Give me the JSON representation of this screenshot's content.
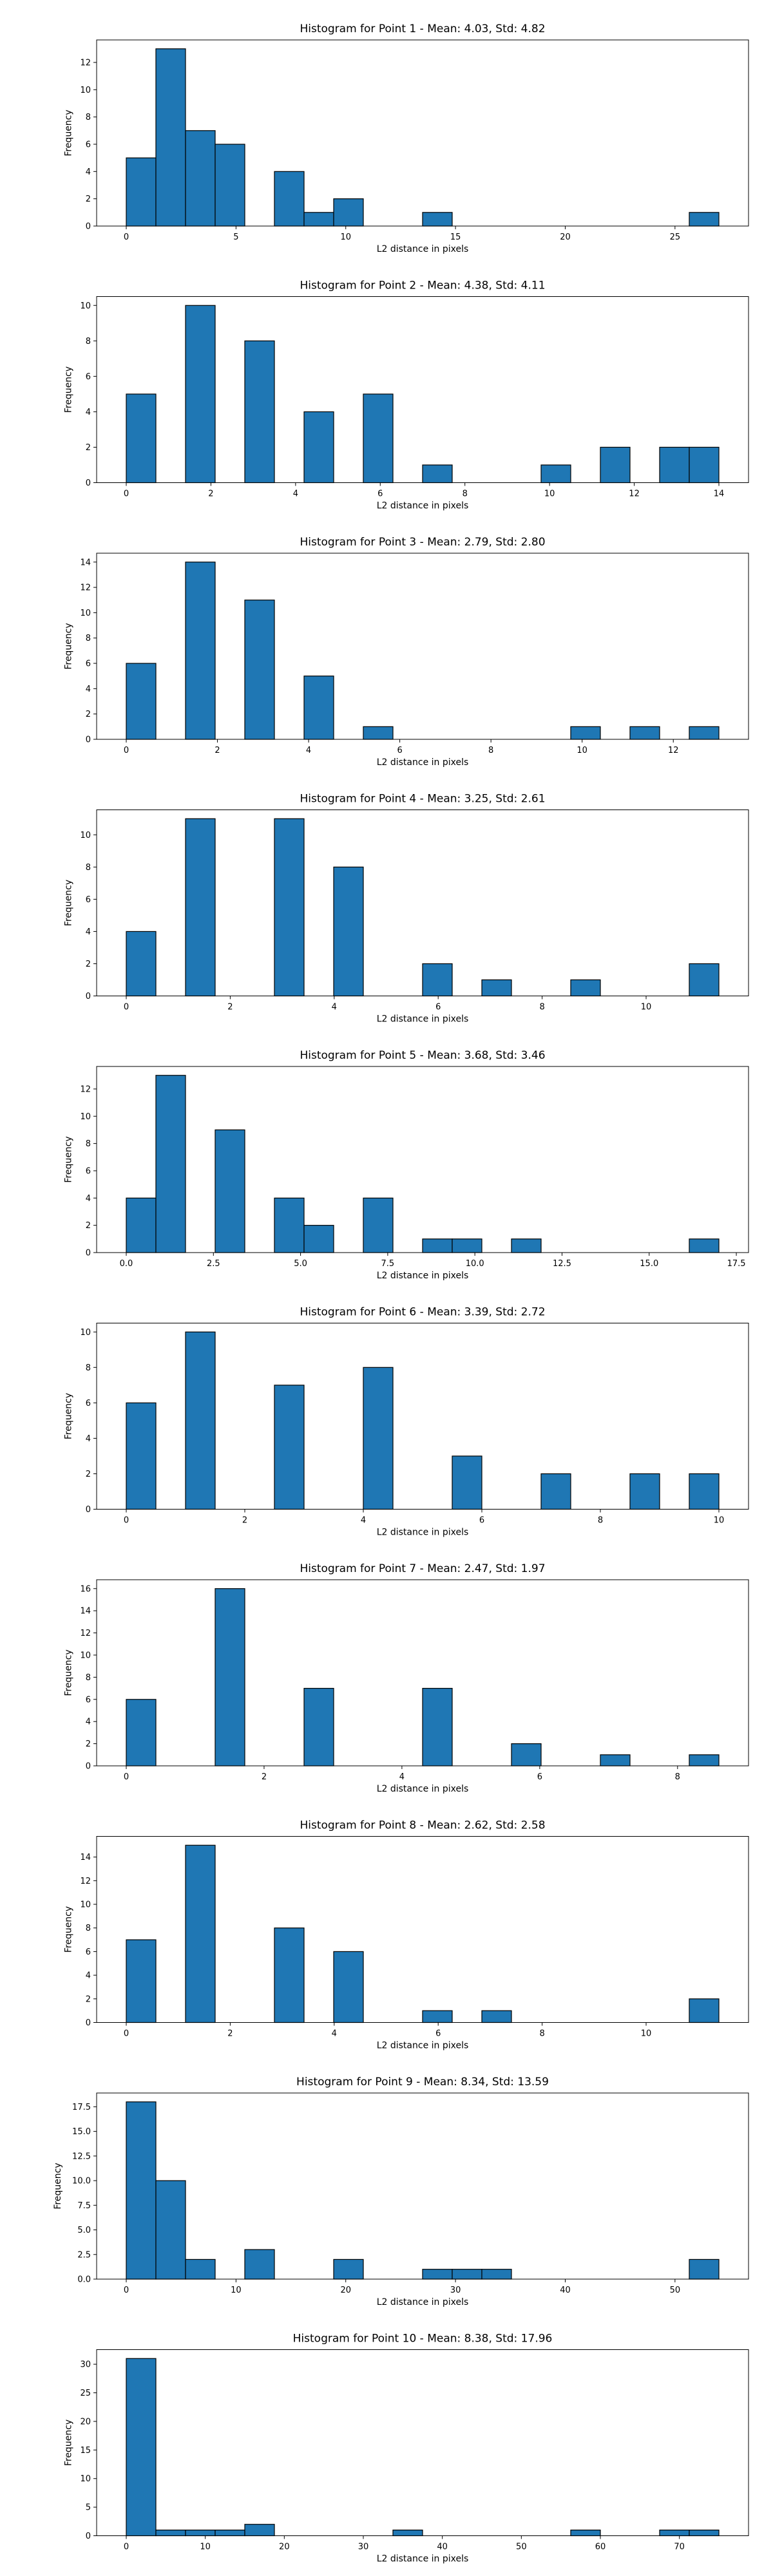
{
  "chart_data": [
    {
      "type": "bar",
      "title": "Histogram for Point 1 - Mean: 4.03, Std: 4.82",
      "xlabel": "L2 distance in pixels",
      "ylabel": "Frequency",
      "xlim": [
        -1.35,
        28.35
      ],
      "ylim": [
        0,
        13.65
      ],
      "xticks": [
        0,
        5,
        10,
        15,
        20,
        25
      ],
      "xtick_labels": [
        "0",
        "5",
        "10",
        "15",
        "20",
        "25"
      ],
      "yticks": [
        0,
        2,
        4,
        6,
        8,
        10,
        12
      ],
      "ytick_labels": [
        "0",
        "2",
        "4",
        "6",
        "8",
        "10",
        "12"
      ],
      "bin_edges": [
        0,
        1.35,
        2.7,
        4.05,
        5.4,
        6.75,
        8.1,
        9.45,
        10.8,
        12.15,
        13.5,
        14.85,
        16.2,
        17.55,
        18.9,
        20.25,
        21.6,
        22.95,
        24.3,
        25.65,
        27.0
      ],
      "values": [
        5,
        13,
        7,
        6,
        0,
        4,
        1,
        2,
        0,
        0,
        1,
        0,
        0,
        0,
        0,
        0,
        0,
        0,
        0,
        1
      ],
      "color": "#1f77b4",
      "edgecolor": "#000000"
    },
    {
      "type": "bar",
      "title": "Histogram for Point 2 - Mean: 4.38, Std: 4.11",
      "xlabel": "L2 distance in pixels",
      "ylabel": "Frequency",
      "xlim": [
        -0.7,
        14.7
      ],
      "ylim": [
        0,
        10.5
      ],
      "xticks": [
        0,
        2,
        4,
        6,
        8,
        10,
        12,
        14
      ],
      "xtick_labels": [
        "0",
        "2",
        "4",
        "6",
        "8",
        "10",
        "12",
        "14"
      ],
      "yticks": [
        0,
        2,
        4,
        6,
        8,
        10
      ],
      "ytick_labels": [
        "0",
        "2",
        "4",
        "6",
        "8",
        "10"
      ],
      "bin_edges": [
        0,
        0.7,
        1.4,
        2.1,
        2.8,
        3.5,
        4.2,
        4.9,
        5.6,
        6.3,
        7.0,
        7.7,
        8.4,
        9.1,
        9.8,
        10.5,
        11.2,
        11.9,
        12.6,
        13.3,
        14.0
      ],
      "values": [
        5,
        0,
        10,
        0,
        8,
        0,
        4,
        0,
        5,
        0,
        1,
        0,
        0,
        0,
        1,
        0,
        2,
        0,
        2,
        2
      ],
      "color": "#1f77b4",
      "edgecolor": "#000000"
    },
    {
      "type": "bar",
      "title": "Histogram for Point 3 - Mean: 2.79, Std: 2.80",
      "xlabel": "L2 distance in pixels",
      "ylabel": "Frequency",
      "xlim": [
        -0.65,
        13.65
      ],
      "ylim": [
        0,
        14.7
      ],
      "xticks": [
        0,
        2,
        4,
        6,
        8,
        10,
        12
      ],
      "xtick_labels": [
        "0",
        "2",
        "4",
        "6",
        "8",
        "10",
        "12"
      ],
      "yticks": [
        0,
        2,
        4,
        6,
        8,
        10,
        12,
        14
      ],
      "ytick_labels": [
        "0",
        "2",
        "4",
        "6",
        "8",
        "10",
        "12",
        "14"
      ],
      "bin_edges": [
        0,
        0.65,
        1.3,
        1.95,
        2.6,
        3.25,
        3.9,
        4.55,
        5.2,
        5.85,
        6.5,
        7.15,
        7.8,
        8.45,
        9.1,
        9.75,
        10.4,
        11.05,
        11.7,
        12.35,
        13.0
      ],
      "values": [
        6,
        0,
        14,
        0,
        11,
        0,
        5,
        0,
        1,
        0,
        0,
        0,
        0,
        0,
        0,
        1,
        0,
        1,
        0,
        1
      ],
      "color": "#1f77b4",
      "edgecolor": "#000000"
    },
    {
      "type": "bar",
      "title": "Histogram for Point 4 - Mean: 3.25, Std: 2.61",
      "xlabel": "L2 distance in pixels",
      "ylabel": "Frequency",
      "xlim": [
        -0.57,
        11.97
      ],
      "ylim": [
        0,
        11.55
      ],
      "xticks": [
        0,
        2,
        4,
        6,
        8,
        10
      ],
      "xtick_labels": [
        "0",
        "2",
        "4",
        "6",
        "8",
        "10"
      ],
      "yticks": [
        0,
        2,
        4,
        6,
        8,
        10
      ],
      "ytick_labels": [
        "0",
        "2",
        "4",
        "6",
        "8",
        "10"
      ],
      "bin_edges": [
        0,
        0.57,
        1.14,
        1.71,
        2.28,
        2.85,
        3.42,
        3.99,
        4.56,
        5.13,
        5.7,
        6.27,
        6.84,
        7.41,
        7.98,
        8.55,
        9.12,
        9.69,
        10.26,
        10.83,
        11.4
      ],
      "values": [
        4,
        0,
        11,
        0,
        0,
        11,
        0,
        8,
        0,
        0,
        2,
        0,
        1,
        0,
        0,
        1,
        0,
        0,
        0,
        2
      ],
      "color": "#1f77b4",
      "edgecolor": "#000000"
    },
    {
      "type": "bar",
      "title": "Histogram for Point 5 - Mean: 3.68, Std: 3.46",
      "xlabel": "L2 distance in pixels",
      "ylabel": "Frequency",
      "xlim": [
        -0.85,
        17.85
      ],
      "ylim": [
        0,
        13.65
      ],
      "xticks": [
        0,
        2.5,
        5,
        7.5,
        10,
        12.5,
        15,
        17.5
      ],
      "xtick_labels": [
        "0.0",
        "2.5",
        "5.0",
        "7.5",
        "10.0",
        "12.5",
        "15.0",
        "17.5"
      ],
      "yticks": [
        0,
        2,
        4,
        6,
        8,
        10,
        12
      ],
      "ytick_labels": [
        "0",
        "2",
        "4",
        "6",
        "8",
        "10",
        "12"
      ],
      "bin_edges": [
        0,
        0.85,
        1.7,
        2.55,
        3.4,
        4.25,
        5.1,
        5.95,
        6.8,
        7.65,
        8.5,
        9.35,
        10.2,
        11.05,
        11.9,
        12.75,
        13.6,
        14.45,
        15.3,
        16.15,
        17.0
      ],
      "values": [
        4,
        13,
        0,
        9,
        0,
        4,
        2,
        0,
        4,
        0,
        1,
        1,
        0,
        1,
        0,
        0,
        0,
        0,
        0,
        1
      ],
      "color": "#1f77b4",
      "edgecolor": "#000000"
    },
    {
      "type": "bar",
      "title": "Histogram for Point 6 - Mean: 3.39, Std: 2.72",
      "xlabel": "L2 distance in pixels",
      "ylabel": "Frequency",
      "xlim": [
        -0.5,
        10.5
      ],
      "ylim": [
        0,
        10.5
      ],
      "xticks": [
        0,
        2,
        4,
        6,
        8,
        10
      ],
      "xtick_labels": [
        "0",
        "2",
        "4",
        "6",
        "8",
        "10"
      ],
      "yticks": [
        0,
        2,
        4,
        6,
        8,
        10
      ],
      "ytick_labels": [
        "0",
        "2",
        "4",
        "6",
        "8",
        "10"
      ],
      "bin_edges": [
        0,
        0.5,
        1.0,
        1.5,
        2.0,
        2.5,
        3.0,
        3.5,
        4.0,
        4.5,
        5.0,
        5.5,
        6.0,
        6.5,
        7.0,
        7.5,
        8.0,
        8.5,
        9.0,
        9.5,
        10.0
      ],
      "values": [
        6,
        0,
        10,
        0,
        0,
        7,
        0,
        0,
        8,
        0,
        0,
        3,
        0,
        0,
        2,
        0,
        0,
        2,
        0,
        2
      ],
      "color": "#1f77b4",
      "edgecolor": "#000000"
    },
    {
      "type": "bar",
      "title": "Histogram for Point 7 - Mean: 2.47, Std: 1.97",
      "xlabel": "L2 distance in pixels",
      "ylabel": "Frequency",
      "xlim": [
        -0.43,
        9.03
      ],
      "ylim": [
        0,
        16.8
      ],
      "xticks": [
        0,
        2,
        4,
        6,
        8
      ],
      "xtick_labels": [
        "0",
        "2",
        "4",
        "6",
        "8"
      ],
      "yticks": [
        0,
        2,
        4,
        6,
        8,
        10,
        12,
        14,
        16
      ],
      "ytick_labels": [
        "0",
        "2",
        "4",
        "6",
        "8",
        "10",
        "12",
        "14",
        "16"
      ],
      "bin_edges": [
        0,
        0.43,
        0.86,
        1.29,
        1.72,
        2.15,
        2.58,
        3.01,
        3.44,
        3.87,
        4.3,
        4.73,
        5.16,
        5.59,
        6.02,
        6.45,
        6.88,
        7.31,
        7.74,
        8.17,
        8.6
      ],
      "values": [
        6,
        0,
        0,
        16,
        0,
        0,
        7,
        0,
        0,
        0,
        7,
        0,
        0,
        2,
        0,
        0,
        1,
        0,
        0,
        1
      ],
      "color": "#1f77b4",
      "edgecolor": "#000000"
    },
    {
      "type": "bar",
      "title": "Histogram for Point 8 - Mean: 2.62, Std: 2.58",
      "xlabel": "L2 distance in pixels",
      "ylabel": "Frequency",
      "xlim": [
        -0.57,
        11.97
      ],
      "ylim": [
        0,
        15.75
      ],
      "xticks": [
        0,
        2,
        4,
        6,
        8,
        10
      ],
      "xtick_labels": [
        "0",
        "2",
        "4",
        "6",
        "8",
        "10"
      ],
      "yticks": [
        0,
        2,
        4,
        6,
        8,
        10,
        12,
        14
      ],
      "ytick_labels": [
        "0",
        "2",
        "4",
        "6",
        "8",
        "10",
        "12",
        "14"
      ],
      "bin_edges": [
        0,
        0.57,
        1.14,
        1.71,
        2.28,
        2.85,
        3.42,
        3.99,
        4.56,
        5.13,
        5.7,
        6.27,
        6.84,
        7.41,
        7.98,
        8.55,
        9.12,
        9.69,
        10.26,
        10.83,
        11.4
      ],
      "values": [
        7,
        0,
        15,
        0,
        0,
        8,
        0,
        6,
        0,
        0,
        1,
        0,
        1,
        0,
        0,
        0,
        0,
        0,
        0,
        2
      ],
      "color": "#1f77b4",
      "edgecolor": "#000000"
    },
    {
      "type": "bar",
      "title": "Histogram for Point 9 - Mean: 8.34, Std: 13.59",
      "xlabel": "L2 distance in pixels",
      "ylabel": "Frequency",
      "xlim": [
        -2.7,
        56.7
      ],
      "ylim": [
        0,
        18.9
      ],
      "xticks": [
        0,
        10,
        20,
        30,
        40,
        50
      ],
      "xtick_labels": [
        "0",
        "10",
        "20",
        "30",
        "40",
        "50"
      ],
      "yticks": [
        0,
        2.5,
        5,
        7.5,
        10,
        12.5,
        15,
        17.5
      ],
      "ytick_labels": [
        "0.0",
        "2.5",
        "5.0",
        "7.5",
        "10.0",
        "12.5",
        "15.0",
        "17.5"
      ],
      "bin_edges": [
        0,
        2.7,
        5.4,
        8.1,
        10.8,
        13.5,
        16.2,
        18.9,
        21.6,
        24.3,
        27.0,
        29.7,
        32.4,
        35.1,
        37.8,
        40.5,
        43.2,
        45.9,
        48.6,
        51.3,
        54.0
      ],
      "values": [
        18,
        10,
        2,
        0,
        3,
        0,
        0,
        2,
        0,
        0,
        1,
        1,
        1,
        0,
        0,
        0,
        0,
        0,
        0,
        2
      ],
      "color": "#1f77b4",
      "edgecolor": "#000000"
    },
    {
      "type": "bar",
      "title": "Histogram for Point 10 - Mean: 8.38, Std: 17.96",
      "xlabel": "L2 distance in pixels",
      "ylabel": "Frequency",
      "xlim": [
        -3.75,
        78.75
      ],
      "ylim": [
        0,
        32.55
      ],
      "xticks": [
        0,
        10,
        20,
        30,
        40,
        50,
        60,
        70
      ],
      "xtick_labels": [
        "0",
        "10",
        "20",
        "30",
        "40",
        "50",
        "60",
        "70"
      ],
      "yticks": [
        0,
        5,
        10,
        15,
        20,
        25,
        30
      ],
      "ytick_labels": [
        "0",
        "5",
        "10",
        "15",
        "20",
        "25",
        "30"
      ],
      "bin_edges": [
        0,
        3.75,
        7.5,
        11.25,
        15.0,
        18.75,
        22.5,
        26.25,
        30.0,
        33.75,
        37.5,
        41.25,
        45.0,
        48.75,
        52.5,
        56.25,
        60.0,
        63.75,
        67.5,
        71.25,
        75.0
      ],
      "values": [
        31,
        1,
        1,
        1,
        2,
        0,
        0,
        0,
        0,
        1,
        0,
        0,
        0,
        0,
        0,
        1,
        0,
        0,
        1,
        1
      ],
      "color": "#1f77b4",
      "edgecolor": "#000000"
    }
  ]
}
